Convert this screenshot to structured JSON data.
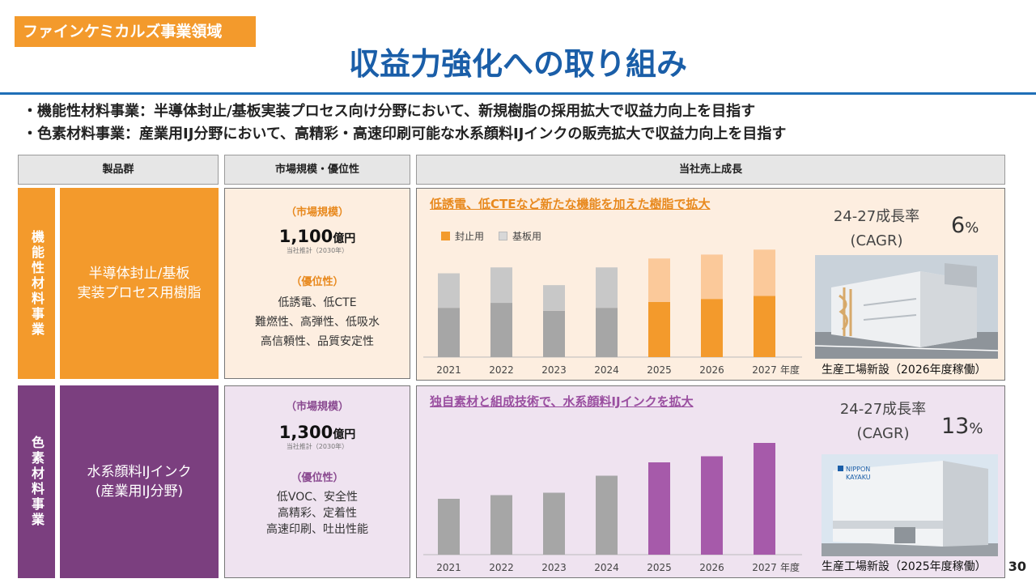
{
  "header": {
    "section_tag": "ファインケミカルズ事業領域",
    "title": "収益力強化への取り組み"
  },
  "bullets": [
    "・機能性材料事業：半導体封止/基板実装プロセス向け分野において、新規樹脂の採用拡大で収益力向上を目指す",
    "・色素材料事業：産業用IJ分野において、高精彩・高速印刷可能な水系顔料IJインクの販売拡大で収益力向上を目指す"
  ],
  "columns": {
    "products": "製品群",
    "market": "市場規模・優位性",
    "growth": "当社売上成長"
  },
  "rows": [
    {
      "category": "機能性材料事業",
      "product_line1": "半導体封止/基板",
      "product_line2": "実装プロセス用樹脂",
      "market_label": "（市場規模）",
      "market_value": "1,100",
      "market_unit": "億円",
      "market_note": "当社推計（2030年）",
      "advantage_label": "（優位性）",
      "advantages": [
        "低誘電、低CTE",
        "難燃性、高弾性、低吸水",
        "高信頼性、品質安定性"
      ],
      "headline": "低誘電、低CTEなど新たな機能を加えた樹脂で拡大",
      "legend": [
        "封止用",
        "基板用"
      ],
      "cagr_label_1": "24-27成長率",
      "cagr_label_2": "(CAGR)",
      "cagr_value": "6",
      "cagr_unit": "%",
      "caption": "生産工場新設（2026年度稼働）",
      "colors": {
        "band": "#f39a2c",
        "panel": "#fdeee0",
        "bar_a_hist": "#a6a6a6",
        "bar_b_hist": "#c8c8c8",
        "bar_a_future": "#f39a2c",
        "bar_b_future": "#fbc99a"
      }
    },
    {
      "category": "色素材料事業",
      "product_line1": "水系顔料IJインク",
      "product_line2": "(産業用IJ分野)",
      "market_label": "（市場規模）",
      "market_value": "1,300",
      "market_unit": "億円",
      "market_note": "当社推計（2030年）",
      "advantage_label": "（優位性）",
      "advantages": [
        "低VOC、安全性",
        "高精彩、定着性",
        "高速印刷、吐出性能"
      ],
      "headline": "独自素材と組成技術で、水系顔料IJインクを拡大",
      "cagr_label_1": "24-27成長率",
      "cagr_label_2": "(CAGR)",
      "cagr_value": "13",
      "cagr_unit": "%",
      "caption": "生産工場新設（2025年度稼働）",
      "building_sign": [
        "NIPPON",
        "KAYAKU"
      ],
      "colors": {
        "band": "#7b3f7f",
        "panel": "#efe3f0",
        "bar_hist": "#a6a6a6",
        "bar_future": "#a65aaa"
      }
    }
  ],
  "chart_data": [
    {
      "type": "bar",
      "stacked": true,
      "categories": [
        "2021",
        "2022",
        "2023",
        "2024",
        "2025",
        "2026",
        "2027"
      ],
      "xlabel": "年度",
      "series": [
        {
          "name": "封止用",
          "values": [
            50,
            55,
            47,
            50,
            56,
            59,
            62
          ]
        },
        {
          "name": "基板用",
          "values": [
            35,
            36,
            26,
            41,
            44,
            45,
            47
          ]
        }
      ],
      "ylim": [
        0,
        115
      ],
      "grid": false
    },
    {
      "type": "bar",
      "categories": [
        "2021",
        "2022",
        "2023",
        "2024",
        "2025",
        "2026",
        "2027"
      ],
      "xlabel": "年度",
      "values": [
        46,
        49,
        51,
        65,
        76,
        81,
        92
      ],
      "ylim": [
        0,
        100
      ],
      "grid": false
    }
  ],
  "page_number": "30"
}
